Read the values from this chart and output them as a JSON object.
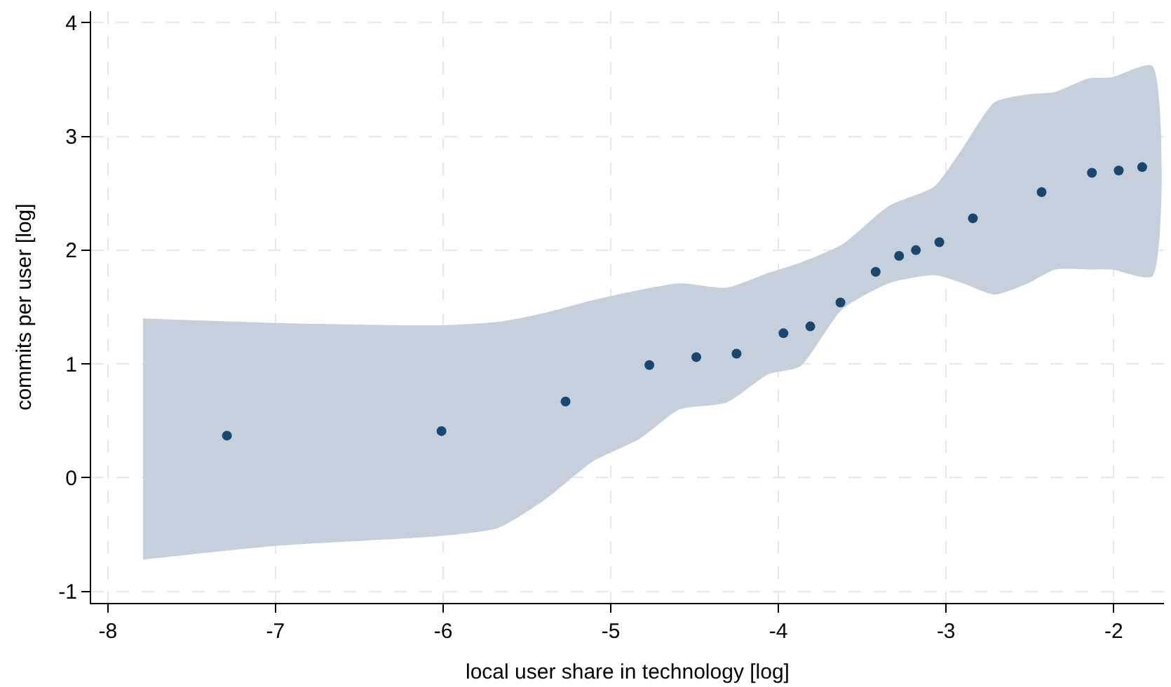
{
  "chart_data": {
    "type": "scatter",
    "xlabel": "local user share in technology [log]",
    "ylabel": "commits per user [log]",
    "xlim": [
      -8.1,
      -1.7
    ],
    "xticks": [
      -8,
      -7,
      -6,
      -5,
      -4,
      -3,
      -2
    ],
    "ylim": [
      -1.1,
      4.1
    ],
    "yticks": [
      -1,
      0,
      1,
      2,
      3,
      4
    ],
    "grid": true,
    "marker": "circle",
    "series": [
      {
        "type": "area",
        "color": "#c5d0dc",
        "values": [
          null,
          null,
          null,
          null,
          null,
          null,
          null,
          null,
          null,
          null,
          null,
          null,
          null,
          null,
          null,
          null,
          null,
          null,
          null,
          null,
          null
        ],
        "x": [
          -7.79,
          -7,
          -6,
          -5.67,
          -5.39,
          -5.11,
          -4.83,
          -4.59,
          -4.31,
          -4.06,
          -3.87,
          -3.62,
          -3.34,
          -3.07,
          -2.9,
          -2.71,
          -2.51,
          -2.35,
          -2.15,
          -2.01,
          -1.77
        ],
        "lower": [
          -0.72,
          -0.6,
          -0.51,
          -0.44,
          -0.19,
          0.14,
          0.34,
          0.6,
          0.66,
          0.91,
          0.98,
          1.48,
          1.71,
          1.78,
          1.71,
          1.61,
          1.71,
          1.83,
          1.83,
          1.83,
          1.77
        ],
        "upper": [
          1.4,
          1.36,
          1.34,
          1.37,
          1.45,
          1.56,
          1.65,
          1.71,
          1.67,
          1.8,
          1.89,
          2.05,
          2.39,
          2.56,
          2.9,
          3.3,
          3.37,
          3.39,
          3.51,
          3.52,
          3.62
        ]
      },
      {
        "color": "#1a476f",
        "x": [
          -7.29,
          -6.01,
          -5.27,
          -4.77,
          -4.49,
          -4.25,
          -3.97,
          -3.81,
          -3.63,
          -3.42,
          -3.28,
          -3.18,
          -3.04,
          -2.84,
          -2.43,
          -2.13,
          -1.97,
          -1.83
        ],
        "values": [
          0.37,
          0.41,
          0.67,
          0.99,
          1.06,
          1.09,
          1.27,
          1.33,
          1.54,
          1.81,
          1.95,
          2.0,
          2.07,
          2.28,
          2.51,
          2.68,
          2.7,
          2.73
        ]
      }
    ]
  }
}
